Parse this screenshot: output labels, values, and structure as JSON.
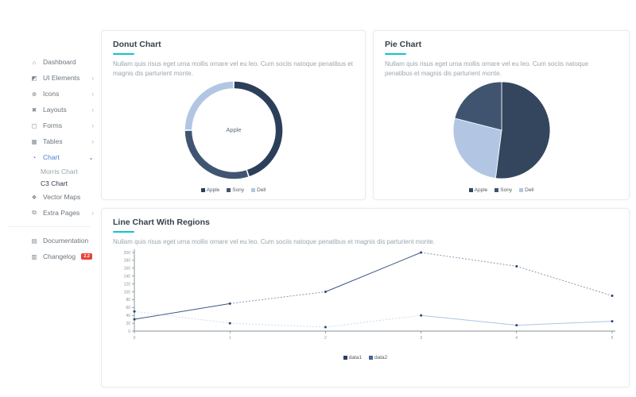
{
  "theme": {
    "accent_teal": "#13c2ce",
    "active_blue": "#4a81d4",
    "text_dark": "#37404a",
    "text_muted": "#9aa6ad",
    "sidebar_text": "#6c757d",
    "badge_red": "#e94135",
    "card_border": "#e8ebee",
    "axis_color": "#5f6b76",
    "tick_text_color": "#8a949d",
    "line_point_color": "#2e456e"
  },
  "sidebar": {
    "items": [
      {
        "label": "Dashboard",
        "icon": "dashboard-icon",
        "glyph": "⌂"
      },
      {
        "label": "UI Elements",
        "icon": "ui-elements-icon",
        "glyph": "◩",
        "chevron": true
      },
      {
        "label": "Icons",
        "icon": "icons-icon",
        "glyph": "⊕",
        "chevron": true
      },
      {
        "label": "Layouts",
        "icon": "layouts-icon",
        "glyph": "✖",
        "chevron": true
      },
      {
        "label": "Forms",
        "icon": "forms-icon",
        "glyph": "▢",
        "chevron": true
      },
      {
        "label": "Tables",
        "icon": "tables-icon",
        "glyph": "▦",
        "chevron": true
      },
      {
        "label": "Chart",
        "icon": "chart-icon",
        "glyph": "◔",
        "chevron": true,
        "active": true,
        "expanded": true,
        "children": [
          {
            "label": "Morris Chart"
          },
          {
            "label": "C3 Chart",
            "current": true
          }
        ]
      },
      {
        "label": "Vector Maps",
        "icon": "vector-maps-icon",
        "glyph": "❖"
      },
      {
        "label": "Extra Pages",
        "icon": "extra-pages-icon",
        "glyph": "⧉",
        "chevron": true
      },
      {
        "type": "divider"
      },
      {
        "label": "Documentation",
        "icon": "documentation-icon",
        "glyph": "▤"
      },
      {
        "label": "Changelog",
        "icon": "changelog-icon",
        "glyph": "▥",
        "badge": "2.2"
      }
    ]
  },
  "cards": {
    "donut": {
      "title": "Donut Chart",
      "description": "Nullam quis risus eget urna mollis ornare vel eu leo. Cum sociis natoque penatibus et magnis dis parturient monte."
    },
    "pie": {
      "title": "Pie Chart",
      "description": "Nullam quis risus eget urna mollis ornare vel eu leo. Cum sociis natoque penatibus et magnis dis parturient monte."
    },
    "line": {
      "title": "Line Chart With Regions",
      "description": "Nullam quis risus eget urna mollis ornare vel eu leo. Cum sociis natoque penatibus et magnis dis parturient monte."
    }
  },
  "chart_data": [
    {
      "type": "donut",
      "title": "Donut Chart",
      "center_label": "Apple",
      "categories": [
        "Apple",
        "Sony",
        "Dell"
      ],
      "values": [
        45,
        30,
        25
      ],
      "colors": [
        "#2c3f5a",
        "#405571",
        "#b2c6e4"
      ],
      "sort": "descending",
      "legend_position": "bottom"
    },
    {
      "type": "pie",
      "title": "Pie Chart",
      "categories": [
        "Apple",
        "Sony",
        "Dell"
      ],
      "values": [
        52,
        21,
        27
      ],
      "colors": [
        "#33465e",
        "#405470",
        "#b2c6e4"
      ],
      "sort": "descending",
      "legend_position": "bottom"
    },
    {
      "type": "line",
      "title": "Line Chart With Regions",
      "x": [
        0,
        1,
        2,
        3,
        4,
        5
      ],
      "series": [
        {
          "name": "data1",
          "values": [
            30,
            70,
            100,
            200,
            165,
            90
          ],
          "color": "#3a5784",
          "legend_color": "#2c3e61",
          "dashed_regions": [
            {
              "start": 1,
              "end": 2
            },
            {
              "start": 3,
              "end": 5
            }
          ]
        },
        {
          "name": "data2",
          "values": [
            50,
            20,
            10,
            40,
            15,
            25
          ],
          "color": "#aac5e6",
          "legend_color": "#47639c",
          "dashed_regions": [
            {
              "start": 0,
              "end": 3
            }
          ]
        }
      ],
      "xlim": [
        0,
        5
      ],
      "ylim": [
        0,
        200
      ],
      "ytick_step": 20,
      "xticks": [
        0,
        1,
        2,
        3,
        4,
        5
      ],
      "grid": false,
      "legend_position": "bottom"
    }
  ]
}
